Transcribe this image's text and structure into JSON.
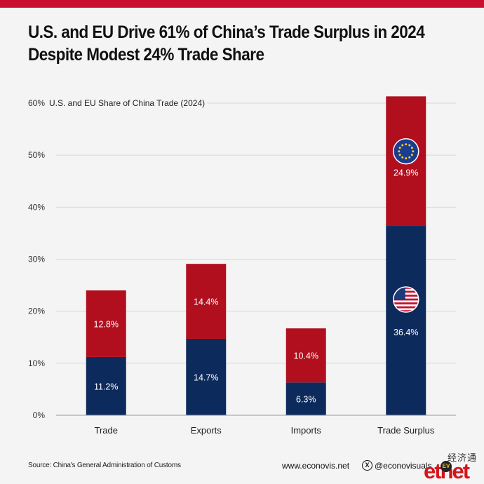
{
  "title": {
    "line1": "U.S. and EU Drive 61% of China’s Trade Surplus in 2024",
    "line2": "Despite Modest 24% Trade Share"
  },
  "colors": {
    "us": "#0d2a5c",
    "eu": "#b10f1e",
    "accent": "#c8102e",
    "grid": "#d8d8d8"
  },
  "chart_data": {
    "type": "bar",
    "stacked": true,
    "title": "U.S. and EU Share of China Trade (2024)",
    "xlabel": "",
    "ylabel": "",
    "ylim": [
      0,
      60
    ],
    "yticks": [
      "0%",
      "10%",
      "20%",
      "30%",
      "40%",
      "50%",
      "60%"
    ],
    "grid": true,
    "categories": [
      "Trade",
      "Exports",
      "Imports",
      "Trade Surplus"
    ],
    "series": [
      {
        "key": "us",
        "values": [
          11.2,
          14.7,
          6.3,
          36.4
        ],
        "labels": [
          "11.2%",
          "14.7%",
          "6.3%",
          "36.4%"
        ]
      },
      {
        "key": "eu",
        "values": [
          12.8,
          14.4,
          10.4,
          24.9
        ],
        "labels": [
          "12.8%",
          "14.4%",
          "10.4%",
          "24.9%"
        ]
      }
    ],
    "flag_icons": [
      "eu-flag-icon",
      "us-flag-icon"
    ]
  },
  "footer": {
    "source": "Source: China's General Administration of Customs",
    "website": "www.econovis.net",
    "x_icon": "X",
    "handle": "@econovisuals"
  },
  "logo": {
    "chinese": "经济通",
    "latin": "etnet",
    "badge": "EV"
  }
}
